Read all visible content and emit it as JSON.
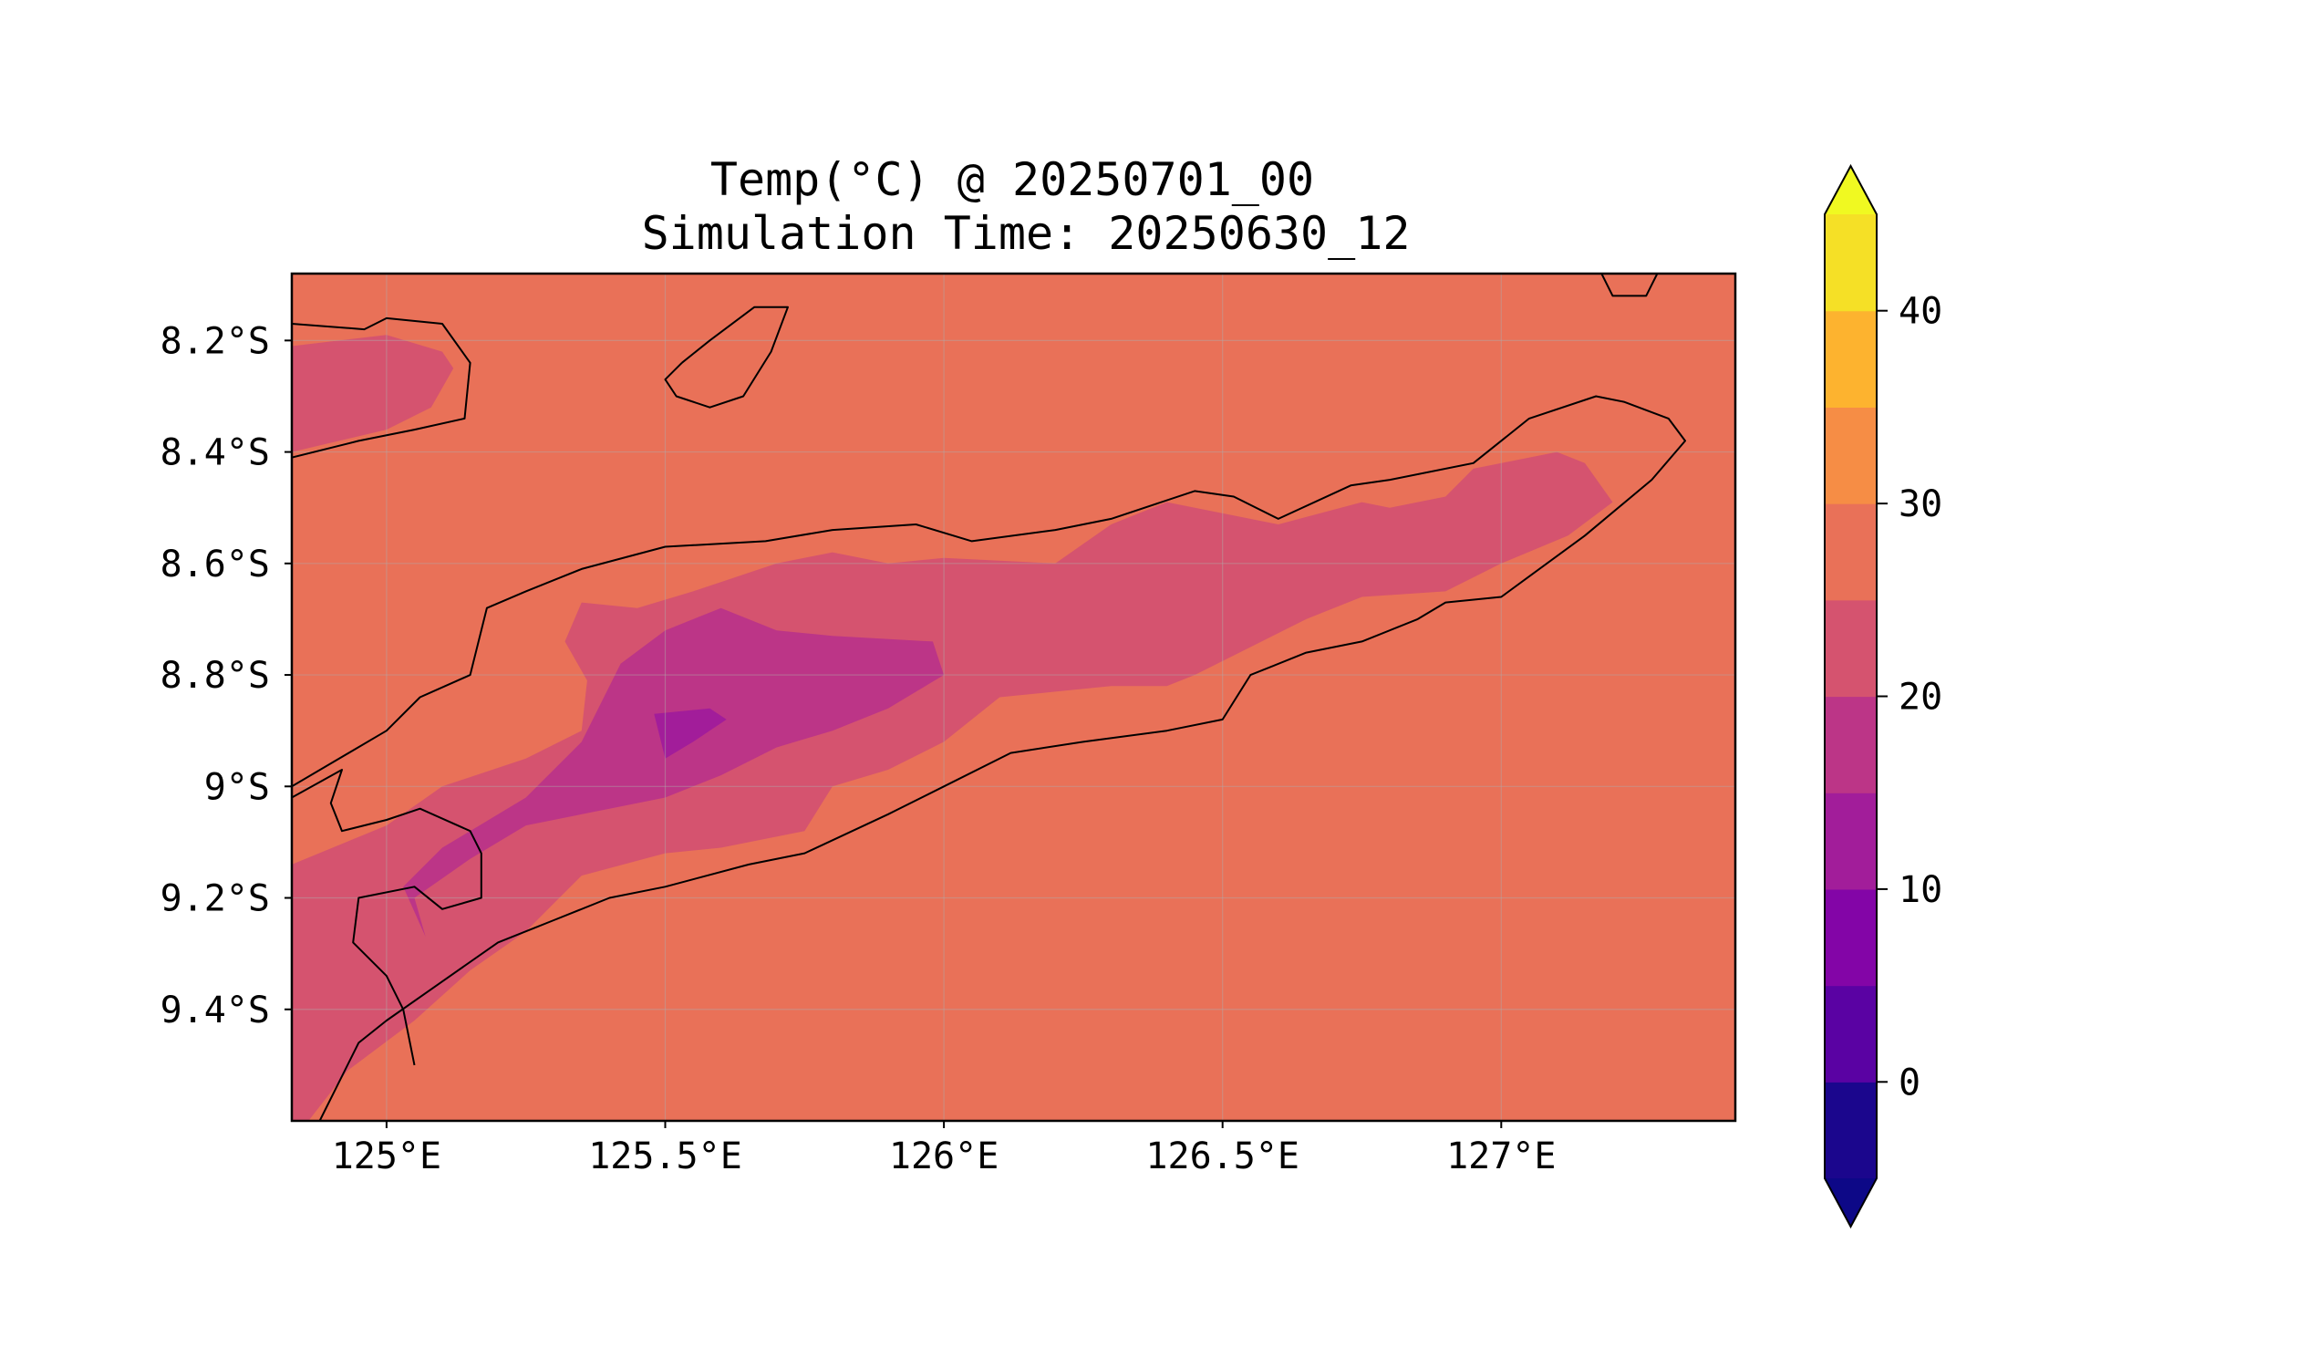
{
  "title": {
    "line1": "Temp(°C) @ 20250701_00",
    "line2": "Simulation Time: 20250630_12"
  },
  "map": {
    "projection": "PlateCarree",
    "lon_range": [
      124.83,
      127.42
    ],
    "lat_range": [
      -9.6,
      -8.08
    ],
    "x_ticks": [
      {
        "value": 125.0,
        "label": "125°E"
      },
      {
        "value": 125.5,
        "label": "125.5°E"
      },
      {
        "value": 126.0,
        "label": "126°E"
      },
      {
        "value": 126.5,
        "label": "126.5°E"
      },
      {
        "value": 127.0,
        "label": "127°E"
      }
    ],
    "y_ticks": [
      {
        "value": -8.2,
        "label": "8.2°S"
      },
      {
        "value": -8.4,
        "label": "8.4°S"
      },
      {
        "value": -8.6,
        "label": "8.6°S"
      },
      {
        "value": -8.8,
        "label": "8.8°S"
      },
      {
        "value": -9.0,
        "label": "9°S"
      },
      {
        "value": -9.2,
        "label": "9.2°S"
      },
      {
        "value": -9.4,
        "label": "9.4°S"
      }
    ],
    "gridlines": true,
    "coastlines": true,
    "background_fill_band": "25-30"
  },
  "colorbar": {
    "orientation": "vertical",
    "position": "right",
    "extend": "both",
    "min": -5,
    "max": 45,
    "bounds": [
      -5,
      0,
      5,
      10,
      15,
      20,
      25,
      30,
      35,
      40,
      45
    ],
    "colors": [
      "#1b068d",
      "#5a02a3",
      "#8305a7",
      "#a21d9a",
      "#bc3587",
      "#d5536f",
      "#e97158",
      "#f68d45",
      "#fdb32f",
      "#f5e026"
    ],
    "under_color": "#0d0887",
    "over_color": "#f0f921",
    "ticks": [
      {
        "value": 0,
        "label": "0"
      },
      {
        "value": 10,
        "label": "10"
      },
      {
        "value": 20,
        "label": "20"
      },
      {
        "value": 30,
        "label": "30"
      },
      {
        "value": 40,
        "label": "40"
      }
    ]
  },
  "chart_data": {
    "type": "heatmap",
    "variable": "Temp(°C)",
    "fill_levels": [
      {
        "band": "25-30",
        "color": "#e97158"
      },
      {
        "band": "20-25",
        "color": "#d5536f"
      },
      {
        "band": "15-20",
        "color": "#bc3587"
      },
      {
        "band": "10-15",
        "color": "#a21d9a"
      }
    ],
    "regions": [
      {
        "band": "20-25",
        "name": "north-west-patch",
        "points": [
          [
            124.83,
            -8.21
          ],
          [
            125.0,
            -8.19
          ],
          [
            125.1,
            -8.22
          ],
          [
            125.12,
            -8.25
          ],
          [
            125.08,
            -8.32
          ],
          [
            125.0,
            -8.36
          ],
          [
            124.83,
            -8.4
          ]
        ]
      },
      {
        "band": "20-25",
        "name": "central-ridge",
        "points": [
          [
            124.83,
            -9.14
          ],
          [
            125.0,
            -9.07
          ],
          [
            125.1,
            -9.0
          ],
          [
            125.25,
            -8.95
          ],
          [
            125.35,
            -8.9
          ],
          [
            125.36,
            -8.81
          ],
          [
            125.32,
            -8.74
          ],
          [
            125.35,
            -8.67
          ],
          [
            125.45,
            -8.68
          ],
          [
            125.55,
            -8.65
          ],
          [
            125.7,
            -8.6
          ],
          [
            125.8,
            -8.58
          ],
          [
            125.9,
            -8.6
          ],
          [
            126.0,
            -8.59
          ],
          [
            126.2,
            -8.6
          ],
          [
            126.3,
            -8.53
          ],
          [
            126.4,
            -8.49
          ],
          [
            126.6,
            -8.53
          ],
          [
            126.75,
            -8.49
          ],
          [
            126.8,
            -8.5
          ],
          [
            126.9,
            -8.48
          ],
          [
            126.95,
            -8.43
          ],
          [
            127.1,
            -8.4
          ],
          [
            127.15,
            -8.42
          ],
          [
            127.2,
            -8.49
          ],
          [
            127.12,
            -8.55
          ],
          [
            127.0,
            -8.6
          ],
          [
            126.9,
            -8.65
          ],
          [
            126.75,
            -8.66
          ],
          [
            126.65,
            -8.7
          ],
          [
            126.55,
            -8.75
          ],
          [
            126.45,
            -8.8
          ],
          [
            126.4,
            -8.82
          ],
          [
            126.3,
            -8.82
          ],
          [
            126.2,
            -8.83
          ],
          [
            126.1,
            -8.84
          ],
          [
            126.0,
            -8.92
          ],
          [
            125.9,
            -8.97
          ],
          [
            125.8,
            -9.0
          ],
          [
            125.75,
            -9.08
          ],
          [
            125.6,
            -9.11
          ],
          [
            125.5,
            -9.12
          ],
          [
            125.35,
            -9.16
          ],
          [
            125.25,
            -9.26
          ],
          [
            125.15,
            -9.33
          ],
          [
            125.05,
            -9.42
          ],
          [
            124.93,
            -9.51
          ],
          [
            124.86,
            -9.6
          ],
          [
            124.83,
            -9.6
          ]
        ]
      },
      {
        "band": "15-20",
        "name": "central-core",
        "points": [
          [
            125.05,
            -9.2
          ],
          [
            125.15,
            -9.13
          ],
          [
            125.25,
            -9.07
          ],
          [
            125.4,
            -9.04
          ],
          [
            125.5,
            -9.02
          ],
          [
            125.6,
            -8.98
          ],
          [
            125.7,
            -8.93
          ],
          [
            125.8,
            -8.9
          ],
          [
            125.9,
            -8.86
          ],
          [
            126.0,
            -8.8
          ],
          [
            125.98,
            -8.74
          ],
          [
            125.8,
            -8.73
          ],
          [
            125.7,
            -8.72
          ],
          [
            125.6,
            -8.68
          ],
          [
            125.5,
            -8.72
          ],
          [
            125.42,
            -8.78
          ],
          [
            125.35,
            -8.92
          ],
          [
            125.25,
            -9.02
          ],
          [
            125.15,
            -9.08
          ],
          [
            125.1,
            -9.11
          ],
          [
            125.03,
            -9.18
          ],
          [
            125.07,
            -9.27
          ]
        ]
      },
      {
        "band": "10-15",
        "name": "local-minimum",
        "points": [
          [
            125.48,
            -8.87
          ],
          [
            125.58,
            -8.86
          ],
          [
            125.61,
            -8.88
          ],
          [
            125.55,
            -8.92
          ],
          [
            125.5,
            -8.95
          ]
        ]
      }
    ],
    "coastlines": [
      [
        [
          124.83,
          -8.17
        ],
        [
          124.96,
          -8.18
        ],
        [
          125.0,
          -8.16
        ],
        [
          125.1,
          -8.17
        ],
        [
          125.15,
          -8.24
        ],
        [
          125.14,
          -8.34
        ],
        [
          125.05,
          -8.36
        ],
        [
          124.95,
          -8.38
        ],
        [
          124.83,
          -8.41
        ]
      ],
      [
        [
          125.53,
          -8.24
        ],
        [
          125.58,
          -8.2
        ],
        [
          125.66,
          -8.14
        ],
        [
          125.72,
          -8.14
        ],
        [
          125.69,
          -8.22
        ],
        [
          125.64,
          -8.3
        ],
        [
          125.58,
          -8.32
        ],
        [
          125.52,
          -8.3
        ],
        [
          125.5,
          -8.27
        ],
        [
          125.53,
          -8.24
        ]
      ],
      [
        [
          127.18,
          -8.08
        ],
        [
          127.2,
          -8.12
        ],
        [
          127.26,
          -8.12
        ],
        [
          127.28,
          -8.08
        ]
      ],
      [
        [
          124.83,
          -9.0
        ],
        [
          125.0,
          -8.9
        ],
        [
          125.06,
          -8.84
        ],
        [
          125.15,
          -8.8
        ],
        [
          125.18,
          -8.68
        ],
        [
          125.25,
          -8.65
        ],
        [
          125.35,
          -8.61
        ],
        [
          125.5,
          -8.57
        ],
        [
          125.68,
          -8.56
        ],
        [
          125.8,
          -8.54
        ],
        [
          125.95,
          -8.53
        ],
        [
          126.05,
          -8.56
        ],
        [
          126.2,
          -8.54
        ],
        [
          126.3,
          -8.52
        ],
        [
          126.45,
          -8.47
        ],
        [
          126.52,
          -8.48
        ],
        [
          126.6,
          -8.52
        ],
        [
          126.73,
          -8.46
        ],
        [
          126.8,
          -8.45
        ],
        [
          126.95,
          -8.42
        ],
        [
          127.05,
          -8.34
        ],
        [
          127.17,
          -8.3
        ],
        [
          127.22,
          -8.31
        ],
        [
          127.3,
          -8.34
        ],
        [
          127.33,
          -8.38
        ],
        [
          127.27,
          -8.45
        ],
        [
          127.15,
          -8.55
        ],
        [
          127.0,
          -8.66
        ],
        [
          126.9,
          -8.67
        ],
        [
          126.85,
          -8.7
        ],
        [
          126.75,
          -8.74
        ],
        [
          126.65,
          -8.76
        ],
        [
          126.55,
          -8.8
        ],
        [
          126.5,
          -8.88
        ],
        [
          126.4,
          -8.9
        ],
        [
          126.25,
          -8.92
        ],
        [
          126.12,
          -8.94
        ],
        [
          126.0,
          -9.0
        ],
        [
          125.9,
          -9.05
        ],
        [
          125.75,
          -9.12
        ],
        [
          125.65,
          -9.14
        ],
        [
          125.5,
          -9.18
        ],
        [
          125.4,
          -9.2
        ],
        [
          125.3,
          -9.24
        ],
        [
          125.2,
          -9.28
        ],
        [
          125.1,
          -9.35
        ],
        [
          125.0,
          -9.42
        ],
        [
          124.95,
          -9.46
        ],
        [
          124.88,
          -9.6
        ]
      ],
      [
        [
          124.83,
          -9.02
        ],
        [
          124.92,
          -8.97
        ],
        [
          124.9,
          -9.03
        ],
        [
          124.92,
          -9.08
        ],
        [
          125.0,
          -9.06
        ],
        [
          125.06,
          -9.04
        ],
        [
          125.15,
          -9.08
        ],
        [
          125.17,
          -9.12
        ],
        [
          125.17,
          -9.2
        ],
        [
          125.1,
          -9.22
        ],
        [
          125.05,
          -9.18
        ],
        [
          124.95,
          -9.2
        ],
        [
          124.94,
          -9.28
        ],
        [
          125.0,
          -9.34
        ],
        [
          125.03,
          -9.4
        ],
        [
          125.05,
          -9.5
        ]
      ]
    ]
  }
}
